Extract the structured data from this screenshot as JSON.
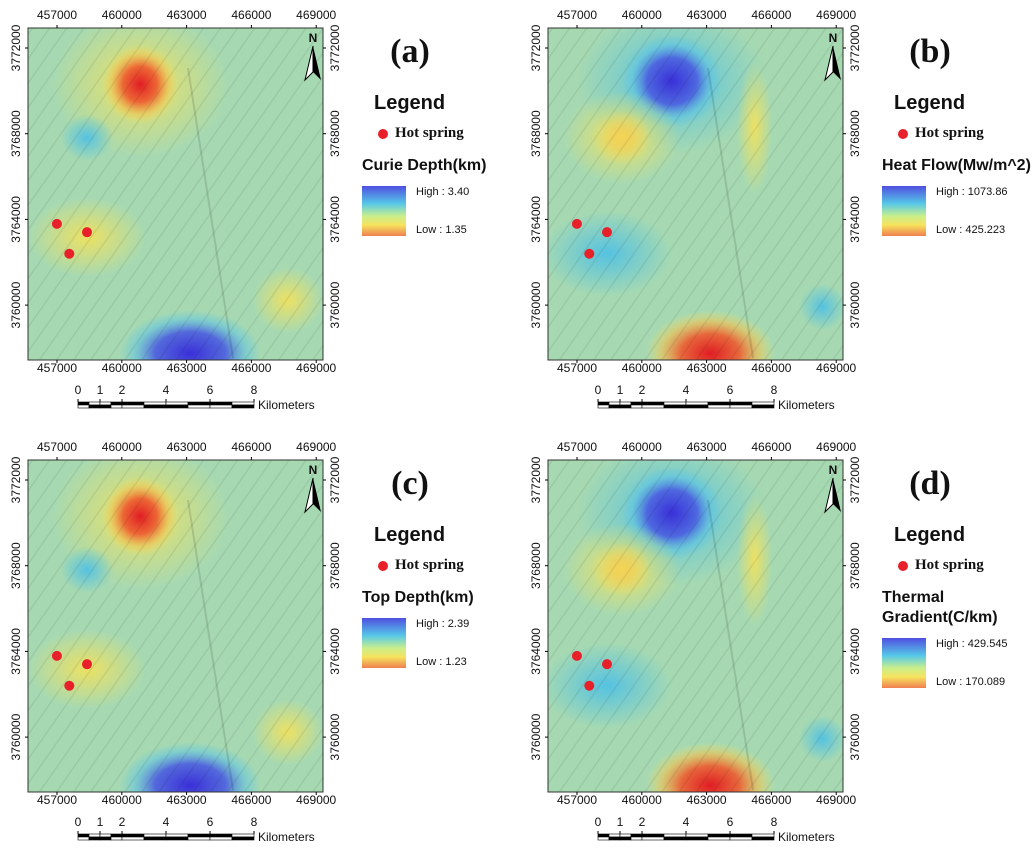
{
  "panels": [
    {
      "label": "(a)",
      "north": "N",
      "x_ticks": [
        457000,
        460000,
        463000,
        466000,
        469000
      ],
      "y_ticks": [
        3772000,
        3768000,
        3764000,
        3760000
      ],
      "legend": {
        "title": "Legend",
        "item": "Hot spring",
        "variable": "Curie Depth(km)",
        "high": "High : 3.40",
        "low": "Low : 1.35"
      },
      "scale": {
        "ticks": [
          0,
          1,
          2,
          4,
          6,
          8
        ],
        "unit": "Kilometers"
      }
    },
    {
      "label": "(b)",
      "north": "N",
      "x_ticks": [
        457000,
        460000,
        463000,
        466000,
        469000
      ],
      "y_ticks": [
        3772000,
        3768000,
        3764000,
        3760000
      ],
      "legend": {
        "title": "Legend",
        "item": "Hot spring",
        "variable": "Heat Flow(Mw/m^2)",
        "high": "High : 1073.86",
        "low": "Low : 425.223"
      },
      "scale": {
        "ticks": [
          0,
          1,
          2,
          4,
          6,
          8
        ],
        "unit": "Kilometers"
      }
    },
    {
      "label": "(c)",
      "north": "N",
      "x_ticks": [
        457000,
        460000,
        463000,
        466000,
        469000
      ],
      "y_ticks": [
        3772000,
        3768000,
        3764000,
        3760000
      ],
      "legend": {
        "title": "Legend",
        "item": "Hot spring",
        "variable": "Top Depth(km)",
        "high": "High : 2.39",
        "low": "Low : 1.23"
      },
      "scale": {
        "ticks": [
          0,
          1,
          2,
          4,
          6,
          8
        ],
        "unit": "Kilometers"
      }
    },
    {
      "label": "(d)",
      "north": "N",
      "x_ticks": [
        457000,
        460000,
        463000,
        466000,
        469000
      ],
      "y_ticks": [
        3772000,
        3768000,
        3764000,
        3760000
      ],
      "legend": {
        "title": "Legend",
        "item": "Hot spring",
        "variable": "Thermal Gradient(C/km)",
        "high": "High : 429.545",
        "low": "Low : 170.089"
      },
      "scale": {
        "ticks": [
          0,
          1,
          2,
          4,
          6,
          8
        ],
        "unit": "Kilometers"
      }
    }
  ]
}
